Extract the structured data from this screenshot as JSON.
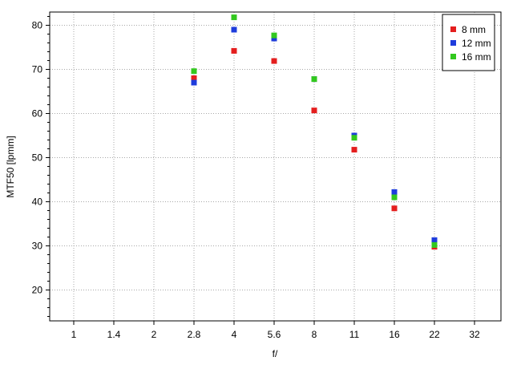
{
  "chart_data": {
    "type": "scatter",
    "xlabel": "f/",
    "ylabel": "MTF50 [lpmm]",
    "x_categories": [
      "1",
      "1.4",
      "2",
      "2.8",
      "4",
      "5.6",
      "8",
      "11",
      "16",
      "22",
      "32"
    ],
    "ylim": [
      13,
      83
    ],
    "y_ticks": [
      "20",
      "30",
      "40",
      "50",
      "60",
      "70",
      "80"
    ],
    "grid": true,
    "legend_position": "top-right",
    "series": [
      {
        "name": "8 mm",
        "color": "#e41e1e",
        "points": [
          {
            "x": "2.8",
            "y": 68.0
          },
          {
            "x": "4",
            "y": 74.2
          },
          {
            "x": "5.6",
            "y": 71.9
          },
          {
            "x": "8",
            "y": 60.7
          },
          {
            "x": "11",
            "y": 51.8
          },
          {
            "x": "16",
            "y": 38.5
          },
          {
            "x": "22",
            "y": 29.8
          }
        ]
      },
      {
        "name": "12 mm",
        "color": "#1e3cdc",
        "points": [
          {
            "x": "2.8",
            "y": 67.0
          },
          {
            "x": "4",
            "y": 79.0
          },
          {
            "x": "5.6",
            "y": 77.0
          },
          {
            "x": "8",
            "y": 67.8
          },
          {
            "x": "11",
            "y": 55.0
          },
          {
            "x": "16",
            "y": 42.2
          },
          {
            "x": "22",
            "y": 31.3
          }
        ]
      },
      {
        "name": "16 mm",
        "color": "#32c81e",
        "points": [
          {
            "x": "2.8",
            "y": 69.6
          },
          {
            "x": "4",
            "y": 81.8
          },
          {
            "x": "5.6",
            "y": 77.7
          },
          {
            "x": "8",
            "y": 67.8
          },
          {
            "x": "11",
            "y": 54.5
          },
          {
            "x": "16",
            "y": 41.0
          },
          {
            "x": "22",
            "y": 30.2
          }
        ]
      }
    ]
  }
}
